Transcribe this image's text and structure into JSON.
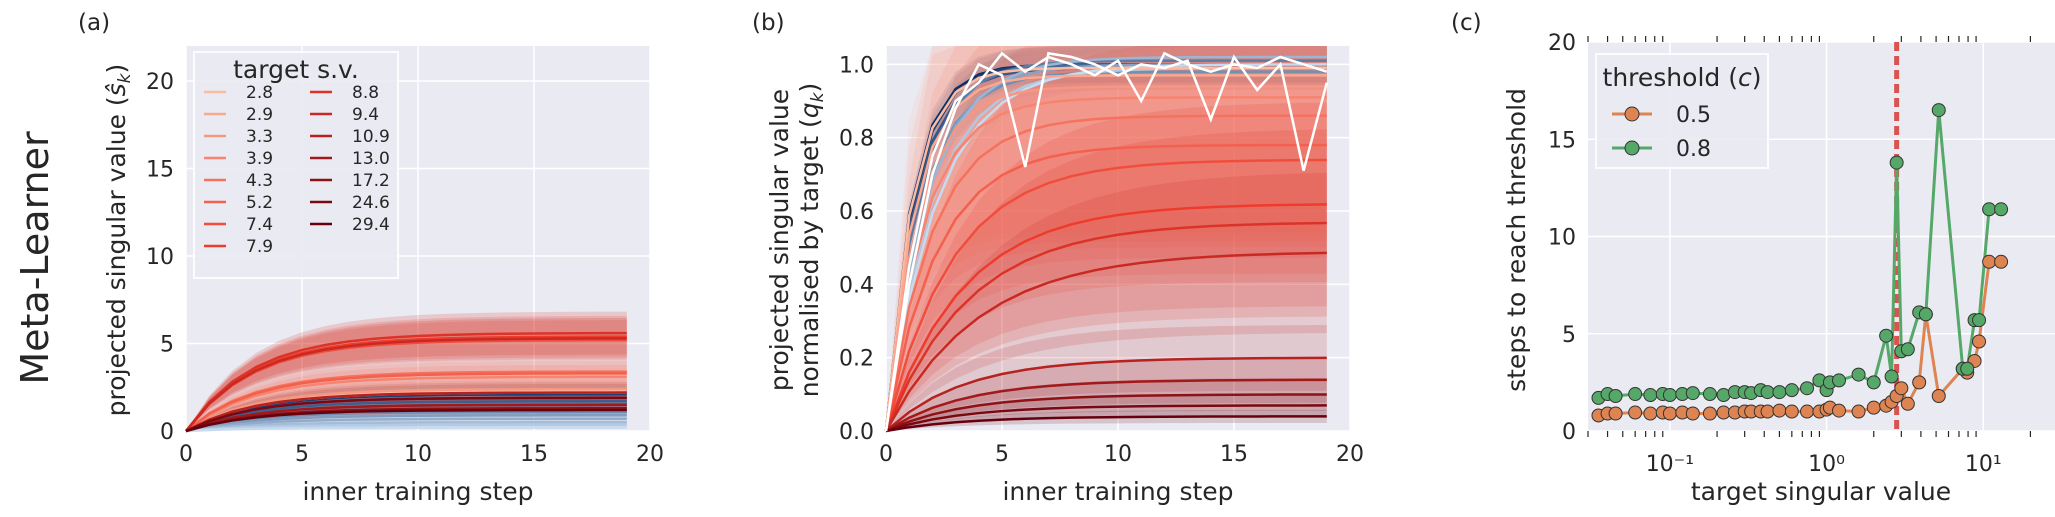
{
  "row_title": "Meta-Learner",
  "chart_data": [
    {
      "panel": "(a)",
      "type": "line",
      "xlabel": "inner training step",
      "ylabel": "projected singular value (ŝ_k)",
      "xlim": [
        0,
        20
      ],
      "ylim": [
        0,
        22
      ],
      "xticks": [
        0,
        5,
        10,
        15,
        20
      ],
      "yticks": [
        0,
        5,
        10,
        15,
        20
      ],
      "grid": true,
      "legend": {
        "title": "target s.v.",
        "placement": "top-left",
        "entries": [
          "2.8",
          "2.9",
          "3.3",
          "3.9",
          "4.3",
          "5.2",
          "7.4",
          "7.9",
          "8.8",
          "9.4",
          "10.9",
          "13.0",
          "17.2",
          "24.6",
          "29.4"
        ]
      },
      "steps": [
        0,
        1,
        2,
        3,
        4,
        5,
        6,
        7,
        8,
        9,
        10,
        11,
        12,
        13,
        14,
        15,
        16,
        17,
        18,
        19
      ],
      "red_series_final_values": [
        2.3,
        2.2,
        2.4,
        3.1,
        3.4,
        3.3,
        5.2,
        5.4,
        5.6,
        5.3,
        2.2,
        1.5,
        1.3,
        1.9,
        1.2
      ],
      "blue_series_final_values": [
        2.3,
        2.1,
        1.9,
        1.7,
        1.5,
        1.3,
        1.1,
        0.9,
        0.7,
        0.5,
        0.35,
        0.2
      ],
      "series_rise_rate": 0.35,
      "band_halfwidth_fraction": 0.22
    },
    {
      "panel": "(b)",
      "type": "line",
      "xlabel": "inner training step",
      "ylabel_line1": "projected singular value",
      "ylabel_line2": "normalised by target (q_k)",
      "xlim": [
        0,
        20
      ],
      "ylim": [
        0,
        1.05
      ],
      "xticks": [
        0,
        5,
        10,
        15,
        20
      ],
      "yticks": [
        "0.0",
        "0.2",
        "0.4",
        "0.6",
        "0.8",
        "1.0"
      ],
      "ytick_values": [
        0,
        0.2,
        0.4,
        0.6,
        0.8,
        1.0
      ],
      "grid": true,
      "steps": [
        0,
        1,
        2,
        3,
        4,
        5,
        6,
        7,
        8,
        9,
        10,
        11,
        12,
        13,
        14,
        15,
        16,
        17,
        18,
        19
      ],
      "red_series_final_values": [
        0.99,
        0.97,
        0.94,
        0.91,
        0.86,
        0.78,
        0.74,
        0.62,
        0.57,
        0.49,
        0.2,
        0.14,
        0.1,
        0.07,
        0.04
      ],
      "red_series_rise_rates": [
        0.9,
        0.8,
        0.7,
        0.6,
        0.5,
        0.45,
        0.35,
        0.3,
        0.28,
        0.25,
        0.3,
        0.3,
        0.3,
        0.3,
        0.3
      ],
      "blue_series_final_values": [
        1.0,
        1.0,
        0.99,
        1.0,
        1.01,
        0.98,
        1.0,
        1.02,
        0.99,
        1.0
      ],
      "white_noisy_series": [
        [
          0,
          0.45,
          0.75,
          0.9,
          0.95,
          1.03,
          0.98,
          1.02,
          1.0,
          0.97,
          1.01,
          0.9,
          1.03,
          1.0,
          0.98,
          1.0,
          0.99,
          1.02,
          1.0,
          0.98
        ],
        [
          0,
          0.4,
          0.7,
          0.88,
          1.0,
          0.97,
          0.72,
          1.03,
          1.02,
          1.0,
          0.97,
          1.0,
          0.99,
          1.01,
          0.85,
          1.02,
          0.93,
          1.0,
          0.71,
          0.95
        ]
      ]
    },
    {
      "panel": "(c)",
      "type": "scatter",
      "xscale": "log",
      "xlabel": "target singular value",
      "ylabel": "steps to reach threshold",
      "xlim": [
        0.03,
        30
      ],
      "ylim": [
        0,
        20
      ],
      "xtick_labels": [
        "10⁻¹",
        "10⁰",
        "10¹"
      ],
      "xtick_values": [
        0.1,
        1,
        10
      ],
      "yticks": [
        0,
        5,
        10,
        15,
        20
      ],
      "grid": true,
      "vertical_line": {
        "x": 2.8,
        "color": "#d9534f",
        "style": "dashed"
      },
      "legend": {
        "title": "threshold (c)",
        "placement": "top-left",
        "entries": [
          "0.5",
          "0.8"
        ]
      },
      "series": [
        {
          "name": "0.5",
          "color": "#dd8452",
          "x": [
            0.035,
            0.04,
            0.045,
            0.06,
            0.075,
            0.09,
            0.1,
            0.12,
            0.14,
            0.18,
            0.22,
            0.26,
            0.3,
            0.33,
            0.38,
            0.42,
            0.5,
            0.6,
            0.75,
            0.9,
            1.0,
            1.05,
            1.2,
            1.6,
            2.0,
            2.4,
            2.6,
            2.8,
            3.0,
            3.3,
            3.9,
            4.3,
            5.2,
            7.4,
            7.9,
            8.8,
            9.4,
            10.9,
            13.0
          ],
          "y": [
            0.8,
            0.9,
            0.9,
            0.95,
            0.9,
            0.95,
            0.9,
            0.95,
            0.9,
            0.9,
            0.95,
            0.95,
            1.0,
            1.0,
            1.0,
            1.0,
            1.05,
            1.0,
            1.0,
            1.0,
            1.1,
            1.2,
            1.05,
            1.0,
            1.2,
            1.3,
            1.5,
            1.8,
            2.2,
            1.4,
            2.5,
            6.0,
            1.8,
            3.2,
            3.0,
            3.6,
            4.6,
            8.7,
            8.7
          ]
        },
        {
          "name": "0.8",
          "color": "#55a868",
          "x": [
            0.035,
            0.04,
            0.045,
            0.06,
            0.075,
            0.09,
            0.1,
            0.12,
            0.14,
            0.18,
            0.22,
            0.26,
            0.3,
            0.33,
            0.38,
            0.42,
            0.5,
            0.6,
            0.75,
            0.9,
            1.0,
            1.05,
            1.2,
            1.6,
            2.0,
            2.4,
            2.6,
            2.8,
            3.0,
            3.3,
            3.9,
            4.3,
            5.2,
            7.4,
            7.9,
            8.8,
            9.4,
            10.9,
            13.0
          ],
          "y": [
            1.7,
            1.9,
            1.8,
            1.9,
            1.85,
            1.9,
            1.85,
            1.9,
            1.95,
            1.9,
            1.85,
            2.0,
            2.0,
            1.95,
            2.1,
            2.0,
            2.0,
            2.1,
            2.2,
            2.6,
            2.1,
            2.5,
            2.6,
            2.9,
            2.5,
            4.9,
            2.8,
            13.8,
            4.1,
            4.2,
            6.1,
            6.0,
            16.5,
            3.2,
            3.2,
            5.7,
            5.7,
            11.4,
            11.4
          ]
        }
      ]
    }
  ]
}
